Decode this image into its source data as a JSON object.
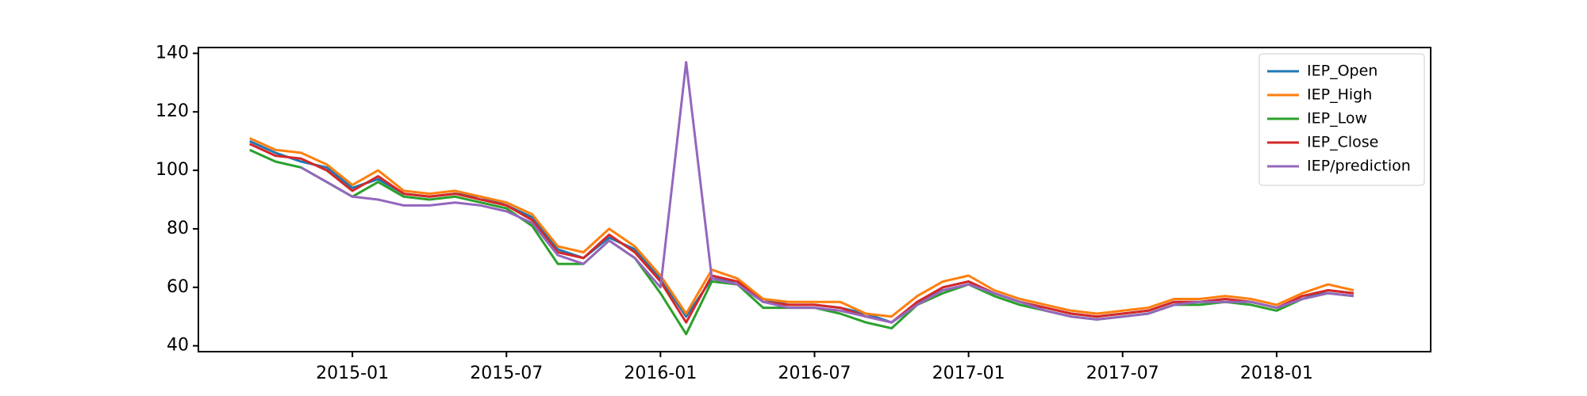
{
  "chart_data": {
    "type": "line",
    "x": [
      "2014-09",
      "2014-10",
      "2014-11",
      "2014-12",
      "2015-01",
      "2015-02",
      "2015-03",
      "2015-04",
      "2015-05",
      "2015-06",
      "2015-07",
      "2015-08",
      "2015-09",
      "2015-10",
      "2015-11",
      "2015-12",
      "2016-01",
      "2016-02",
      "2016-03",
      "2016-04",
      "2016-05",
      "2016-06",
      "2016-07",
      "2016-08",
      "2016-09",
      "2016-10",
      "2016-11",
      "2016-12",
      "2017-01",
      "2017-02",
      "2017-03",
      "2017-04",
      "2017-05",
      "2017-06",
      "2017-07",
      "2017-08",
      "2017-09",
      "2017-10",
      "2017-11",
      "2017-12",
      "2018-01",
      "2018-02",
      "2018-03",
      "2018-04"
    ],
    "series": [
      {
        "name": "IEP_Open",
        "color": "#1f77b4",
        "values": [
          110,
          106,
          103,
          101,
          94,
          97,
          92,
          91,
          92,
          91,
          88,
          84,
          73,
          70,
          77,
          73,
          63,
          50,
          63,
          62,
          56,
          54,
          54,
          53,
          51,
          48,
          54,
          60,
          62,
          58,
          55,
          53,
          51,
          50,
          51,
          52,
          55,
          55,
          56,
          55,
          53,
          56,
          59,
          58
        ]
      },
      {
        "name": "IEP_High",
        "color": "#ff7f0e",
        "values": [
          111,
          107,
          106,
          102,
          95,
          100,
          93,
          92,
          93,
          91,
          89,
          85,
          74,
          72,
          80,
          74,
          64,
          51,
          66,
          63,
          56,
          55,
          55,
          55,
          51,
          50,
          57,
          62,
          64,
          59,
          56,
          54,
          52,
          51,
          52,
          53,
          56,
          56,
          57,
          56,
          54,
          58,
          61,
          59
        ]
      },
      {
        "name": "IEP_Low",
        "color": "#2ca02c",
        "values": [
          107,
          103,
          101,
          96,
          91,
          96,
          91,
          90,
          91,
          89,
          87,
          81,
          68,
          68,
          76,
          70,
          58,
          44,
          62,
          61,
          53,
          53,
          53,
          51,
          48,
          46,
          54,
          58,
          61,
          57,
          54,
          52,
          50,
          49,
          50,
          51,
          54,
          54,
          55,
          54,
          52,
          56,
          58,
          57
        ]
      },
      {
        "name": "IEP_Close",
        "color": "#d62728",
        "values": [
          109,
          105,
          104,
          100,
          93,
          98,
          92,
          91,
          92,
          90,
          88,
          83,
          72,
          70,
          78,
          72,
          62,
          48,
          64,
          62,
          55,
          54,
          54,
          53,
          50,
          48,
          55,
          60,
          62,
          58,
          55,
          53,
          51,
          50,
          51,
          52,
          55,
          55,
          56,
          55,
          53,
          57,
          59,
          58
        ]
      },
      {
        "name": "IEP/prediction",
        "color": "#9467bd",
        "values": [
          null,
          null,
          101,
          96,
          91,
          90,
          88,
          88,
          89,
          88,
          86,
          82,
          71,
          68,
          76,
          70,
          60,
          137,
          63,
          61,
          55,
          53,
          53,
          52,
          50,
          48,
          54,
          59,
          61,
          58,
          55,
          52,
          50,
          49,
          50,
          51,
          54,
          55,
          55,
          55,
          53,
          56,
          58,
          57
        ]
      }
    ],
    "xlim": [
      "2014-07",
      "2018-07"
    ],
    "xticks": [
      "2015-01",
      "2015-07",
      "2016-01",
      "2016-07",
      "2017-01",
      "2017-07",
      "2018-01"
    ],
    "ylim": [
      38,
      142
    ],
    "yticks": [
      40,
      60,
      80,
      100,
      120,
      140
    ],
    "grid": false,
    "legend": "upper right"
  }
}
